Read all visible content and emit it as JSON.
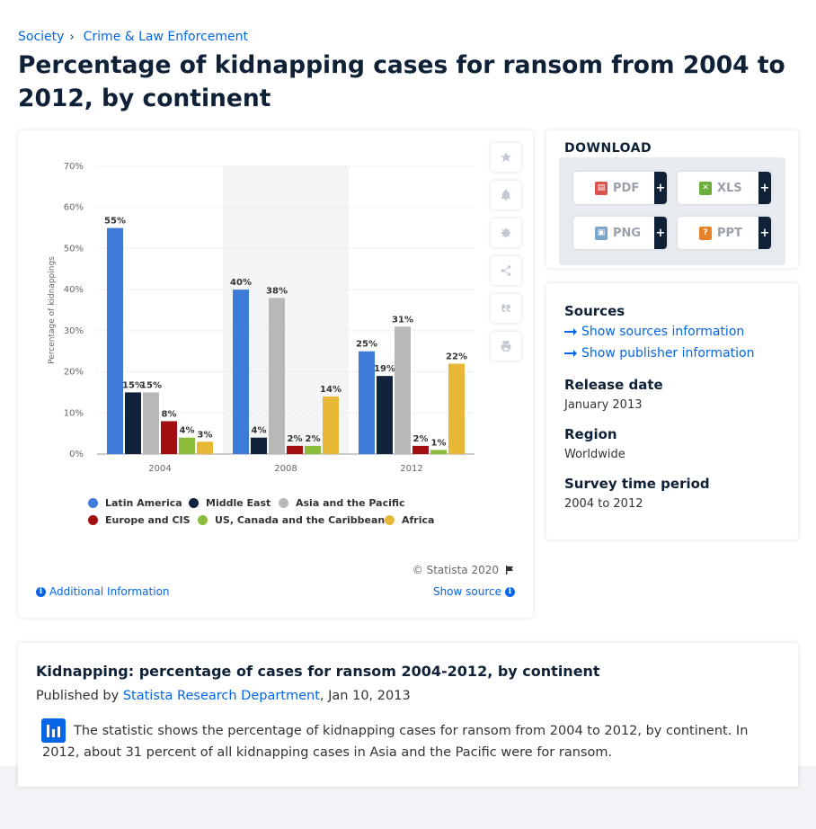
{
  "breadcrumb": {
    "items": [
      "Society",
      "Crime & Law Enforcement"
    ],
    "separator": "›"
  },
  "page": {
    "title": "Percentage of kidnapping cases for ransom from 2004 to 2012, by continent"
  },
  "chart_data": {
    "type": "bar",
    "title": "",
    "xlabel": "",
    "ylabel": "Percentage of kidnappings",
    "categories": [
      "2004",
      "2008",
      "2012"
    ],
    "ylim": [
      0,
      70
    ],
    "yticks": [
      "0%",
      "10%",
      "20%",
      "30%",
      "40%",
      "50%",
      "60%",
      "70%"
    ],
    "grid": true,
    "highlighted_category": "2008",
    "legend_position": "bottom",
    "series": [
      {
        "name": "Latin America",
        "color": "#3e7bd9",
        "values": [
          55,
          40,
          25
        ],
        "labels": [
          "55%",
          "40%",
          "25%"
        ]
      },
      {
        "name": "Middle East",
        "color": "#11233a",
        "values": [
          15,
          4,
          19
        ],
        "labels": [
          "15%",
          "4%",
          "19%"
        ]
      },
      {
        "name": "Asia and the Pacific",
        "color": "#b8b8b8",
        "values": [
          15,
          38,
          31
        ],
        "labels": [
          "15%",
          "38%",
          "31%"
        ]
      },
      {
        "name": "Europe and CIS",
        "color": "#a30f10",
        "values": [
          8,
          2,
          2
        ],
        "labels": [
          "8%",
          "2%",
          "2%"
        ]
      },
      {
        "name": "US, Canada and the Caribbean",
        "color": "#8cbd3a",
        "values": [
          4,
          2,
          1
        ],
        "labels": [
          "4%",
          "2%",
          "1%"
        ]
      },
      {
        "name": "Africa",
        "color": "#e7b835",
        "values": [
          3,
          14,
          22
        ],
        "labels": [
          "3%",
          "14%",
          "22%"
        ]
      }
    ]
  },
  "chart_footer": {
    "copyright": "© Statista 2020",
    "additional_info": "Additional Information",
    "show_source": "Show source"
  },
  "side_actions": [
    "star-icon",
    "bell-icon",
    "gear-icon",
    "share-icon",
    "quote-icon",
    "print-icon"
  ],
  "download": {
    "title": "DOWNLOAD",
    "buttons": [
      {
        "label": "PDF",
        "icon": "pdf-icon",
        "color": "#d9534f"
      },
      {
        "label": "XLS",
        "icon": "xls-icon",
        "color": "#6cae3e"
      },
      {
        "label": "PNG",
        "icon": "png-icon",
        "color": "#7aa6c9"
      },
      {
        "label": "PPT",
        "icon": "ppt-icon",
        "color": "#e8832b"
      }
    ],
    "plus": "+"
  },
  "info": {
    "sources_heading": "Sources",
    "show_sources": "Show sources information",
    "show_publisher": "Show publisher information",
    "release_date_heading": "Release date",
    "release_date": "January 2013",
    "region_heading": "Region",
    "region": "Worldwide",
    "survey_heading": "Survey time period",
    "survey_period": "2004 to 2012"
  },
  "description": {
    "title": "Kidnapping: percentage of cases for ransom 2004-2012, by continent",
    "published_prefix": "Published by",
    "publisher": "Statista Research Department",
    "published_date": ", Jan 10, 2013",
    "text": "The statistic shows the percentage of kidnapping cases for ransom from 2004 to 2012, by continent. In 2012, about 31 percent of all kidnapping cases in Asia and the Pacific were for ransom."
  }
}
